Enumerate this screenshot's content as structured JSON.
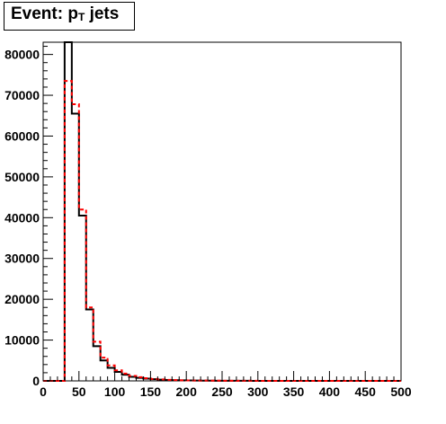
{
  "chart_data": {
    "type": "histogram",
    "title_main": "Event: p",
    "title_sub": "T",
    "title_tail": " jets",
    "bin_width": 10,
    "xlim": [
      0,
      500
    ],
    "ylim": [
      0,
      83000
    ],
    "xticks": [
      0,
      50,
      100,
      150,
      200,
      250,
      300,
      350,
      400,
      450,
      500
    ],
    "xtick_labels": [
      "0",
      "50",
      "100",
      "150",
      "200",
      "250",
      "300",
      "350",
      "400",
      "450",
      "500"
    ],
    "yticks": [
      0,
      10000,
      20000,
      30000,
      40000,
      50000,
      60000,
      70000,
      80000
    ],
    "ytick_labels": [
      "0",
      "10000",
      "20000",
      "30000",
      "40000",
      "50000",
      "60000",
      "70000",
      "80000"
    ],
    "series": [
      {
        "style": "solid",
        "color": "#000000",
        "values": [
          0,
          0,
          0,
          83000,
          65500,
          40500,
          17500,
          8500,
          5000,
          3200,
          2200,
          1500,
          1000,
          750,
          550,
          400,
          300,
          220,
          170,
          130,
          100,
          80,
          60,
          50,
          40,
          30,
          25,
          20,
          15,
          12,
          10,
          8,
          6,
          5,
          4,
          3,
          3,
          2,
          2,
          2,
          1,
          1,
          1,
          1,
          1,
          1,
          1,
          1,
          1,
          1
        ]
      },
      {
        "style": "dashed",
        "color": "#ff0000",
        "values": [
          0,
          0,
          0,
          73500,
          67800,
          42000,
          18000,
          9600,
          5700,
          3800,
          2600,
          1800,
          1200,
          900,
          650,
          480,
          350,
          260,
          200,
          150,
          115,
          90,
          70,
          55,
          45,
          35,
          28,
          22,
          17,
          14,
          11,
          9,
          7,
          6,
          5,
          4,
          3,
          3,
          2,
          2,
          2,
          1,
          1,
          1,
          1,
          1,
          1,
          1,
          1,
          1
        ]
      }
    ]
  }
}
